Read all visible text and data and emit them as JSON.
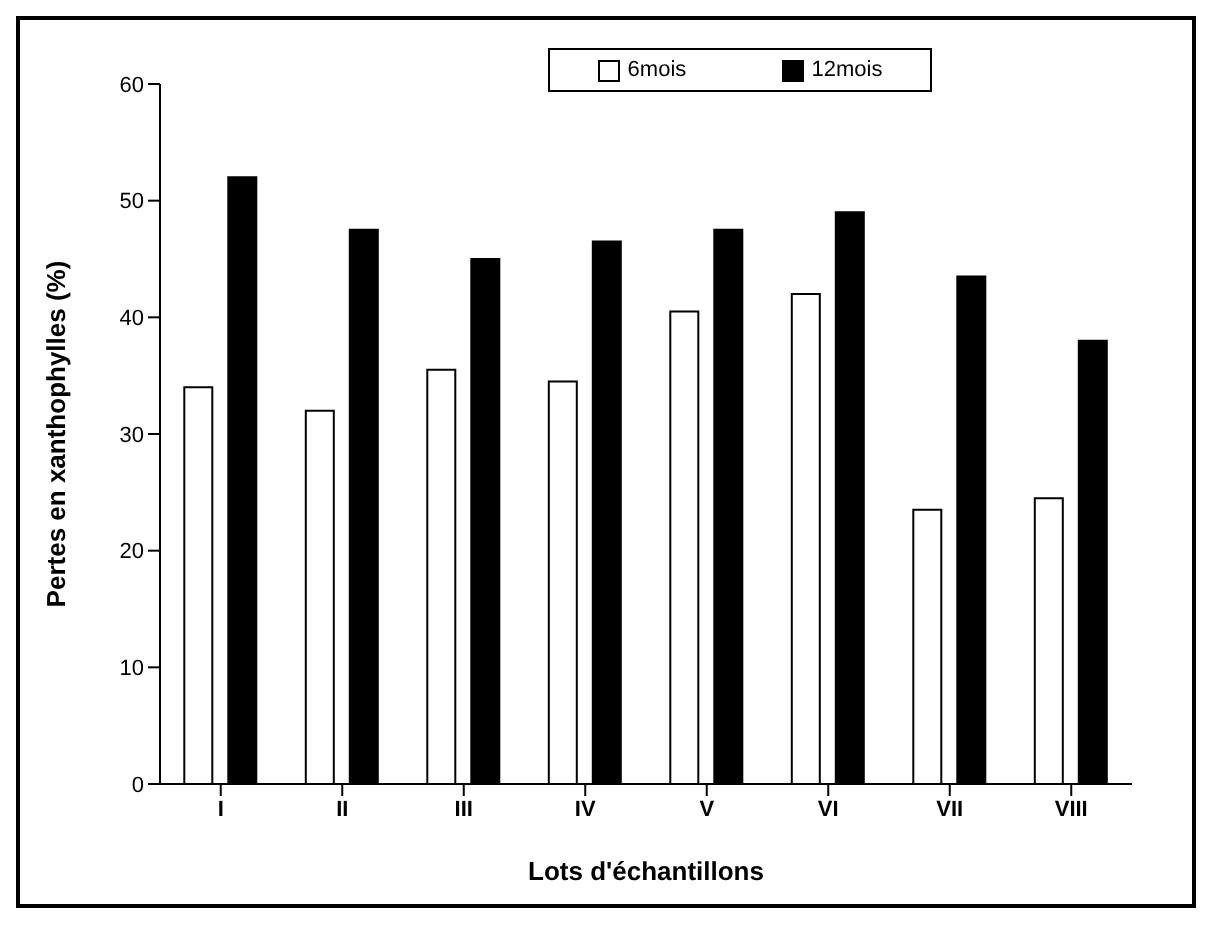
{
  "chart_data": {
    "type": "bar",
    "xlabel": "Lots d'échantillons",
    "ylabel": "Pertes en xanthophylles (%)",
    "categories": [
      "I",
      "II",
      "III",
      "IV",
      "V",
      "VI",
      "VII",
      "VIII"
    ],
    "series": [
      {
        "name": "6mois",
        "color": "#ffffff",
        "values": [
          34,
          32,
          35.5,
          34.5,
          40.5,
          42,
          23.5,
          24.5
        ]
      },
      {
        "name": "12mois",
        "color": "#000000",
        "values": [
          52,
          47.5,
          45,
          46.5,
          47.5,
          49,
          43.5,
          38
        ]
      }
    ],
    "ylim": [
      0,
      60
    ],
    "yticks": [
      0,
      10,
      20,
      30,
      40,
      50,
      60
    ],
    "grid": false,
    "legend": "top right"
  }
}
